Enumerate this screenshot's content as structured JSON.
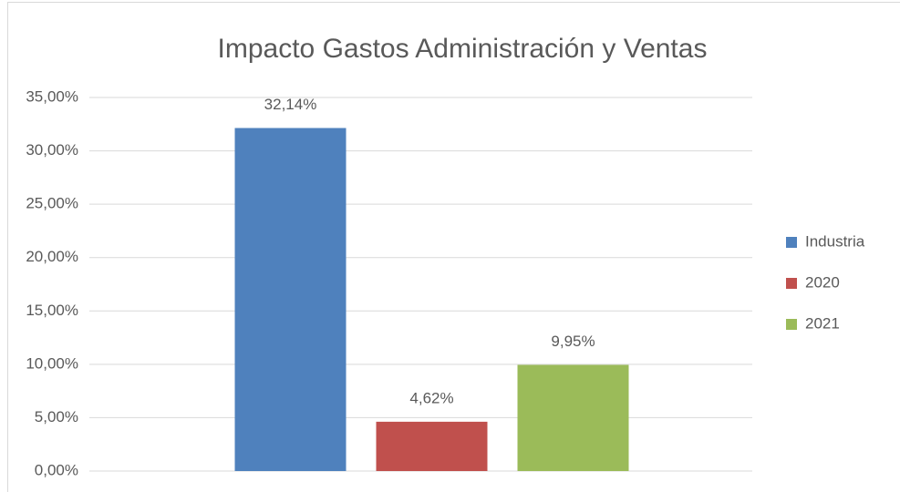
{
  "chart_data": {
    "type": "bar",
    "title": "Impacto Gastos Administración y Ventas",
    "categories": [
      null
    ],
    "series": [
      {
        "name": "Industria",
        "color": "#4f81bd",
        "values": [
          32.14
        ],
        "value_labels": [
          "32,14%"
        ]
      },
      {
        "name": "2020",
        "color": "#c0504d",
        "values": [
          4.62
        ],
        "value_labels": [
          "4,62%"
        ]
      },
      {
        "name": "2021",
        "color": "#9bbb59",
        "values": [
          9.95
        ],
        "value_labels": [
          "9,95%"
        ]
      }
    ],
    "ylim": [
      0,
      35
    ],
    "yticks": [
      {
        "value": 0,
        "label": "0,00%"
      },
      {
        "value": 5,
        "label": "5,00%"
      },
      {
        "value": 10,
        "label": "10,00%"
      },
      {
        "value": 15,
        "label": "15,00%"
      },
      {
        "value": 20,
        "label": "20,00%"
      },
      {
        "value": 25,
        "label": "25,00%"
      },
      {
        "value": 30,
        "label": "30,00%"
      },
      {
        "value": 35,
        "label": "35,00%"
      }
    ],
    "grid": true,
    "legend": "right"
  }
}
